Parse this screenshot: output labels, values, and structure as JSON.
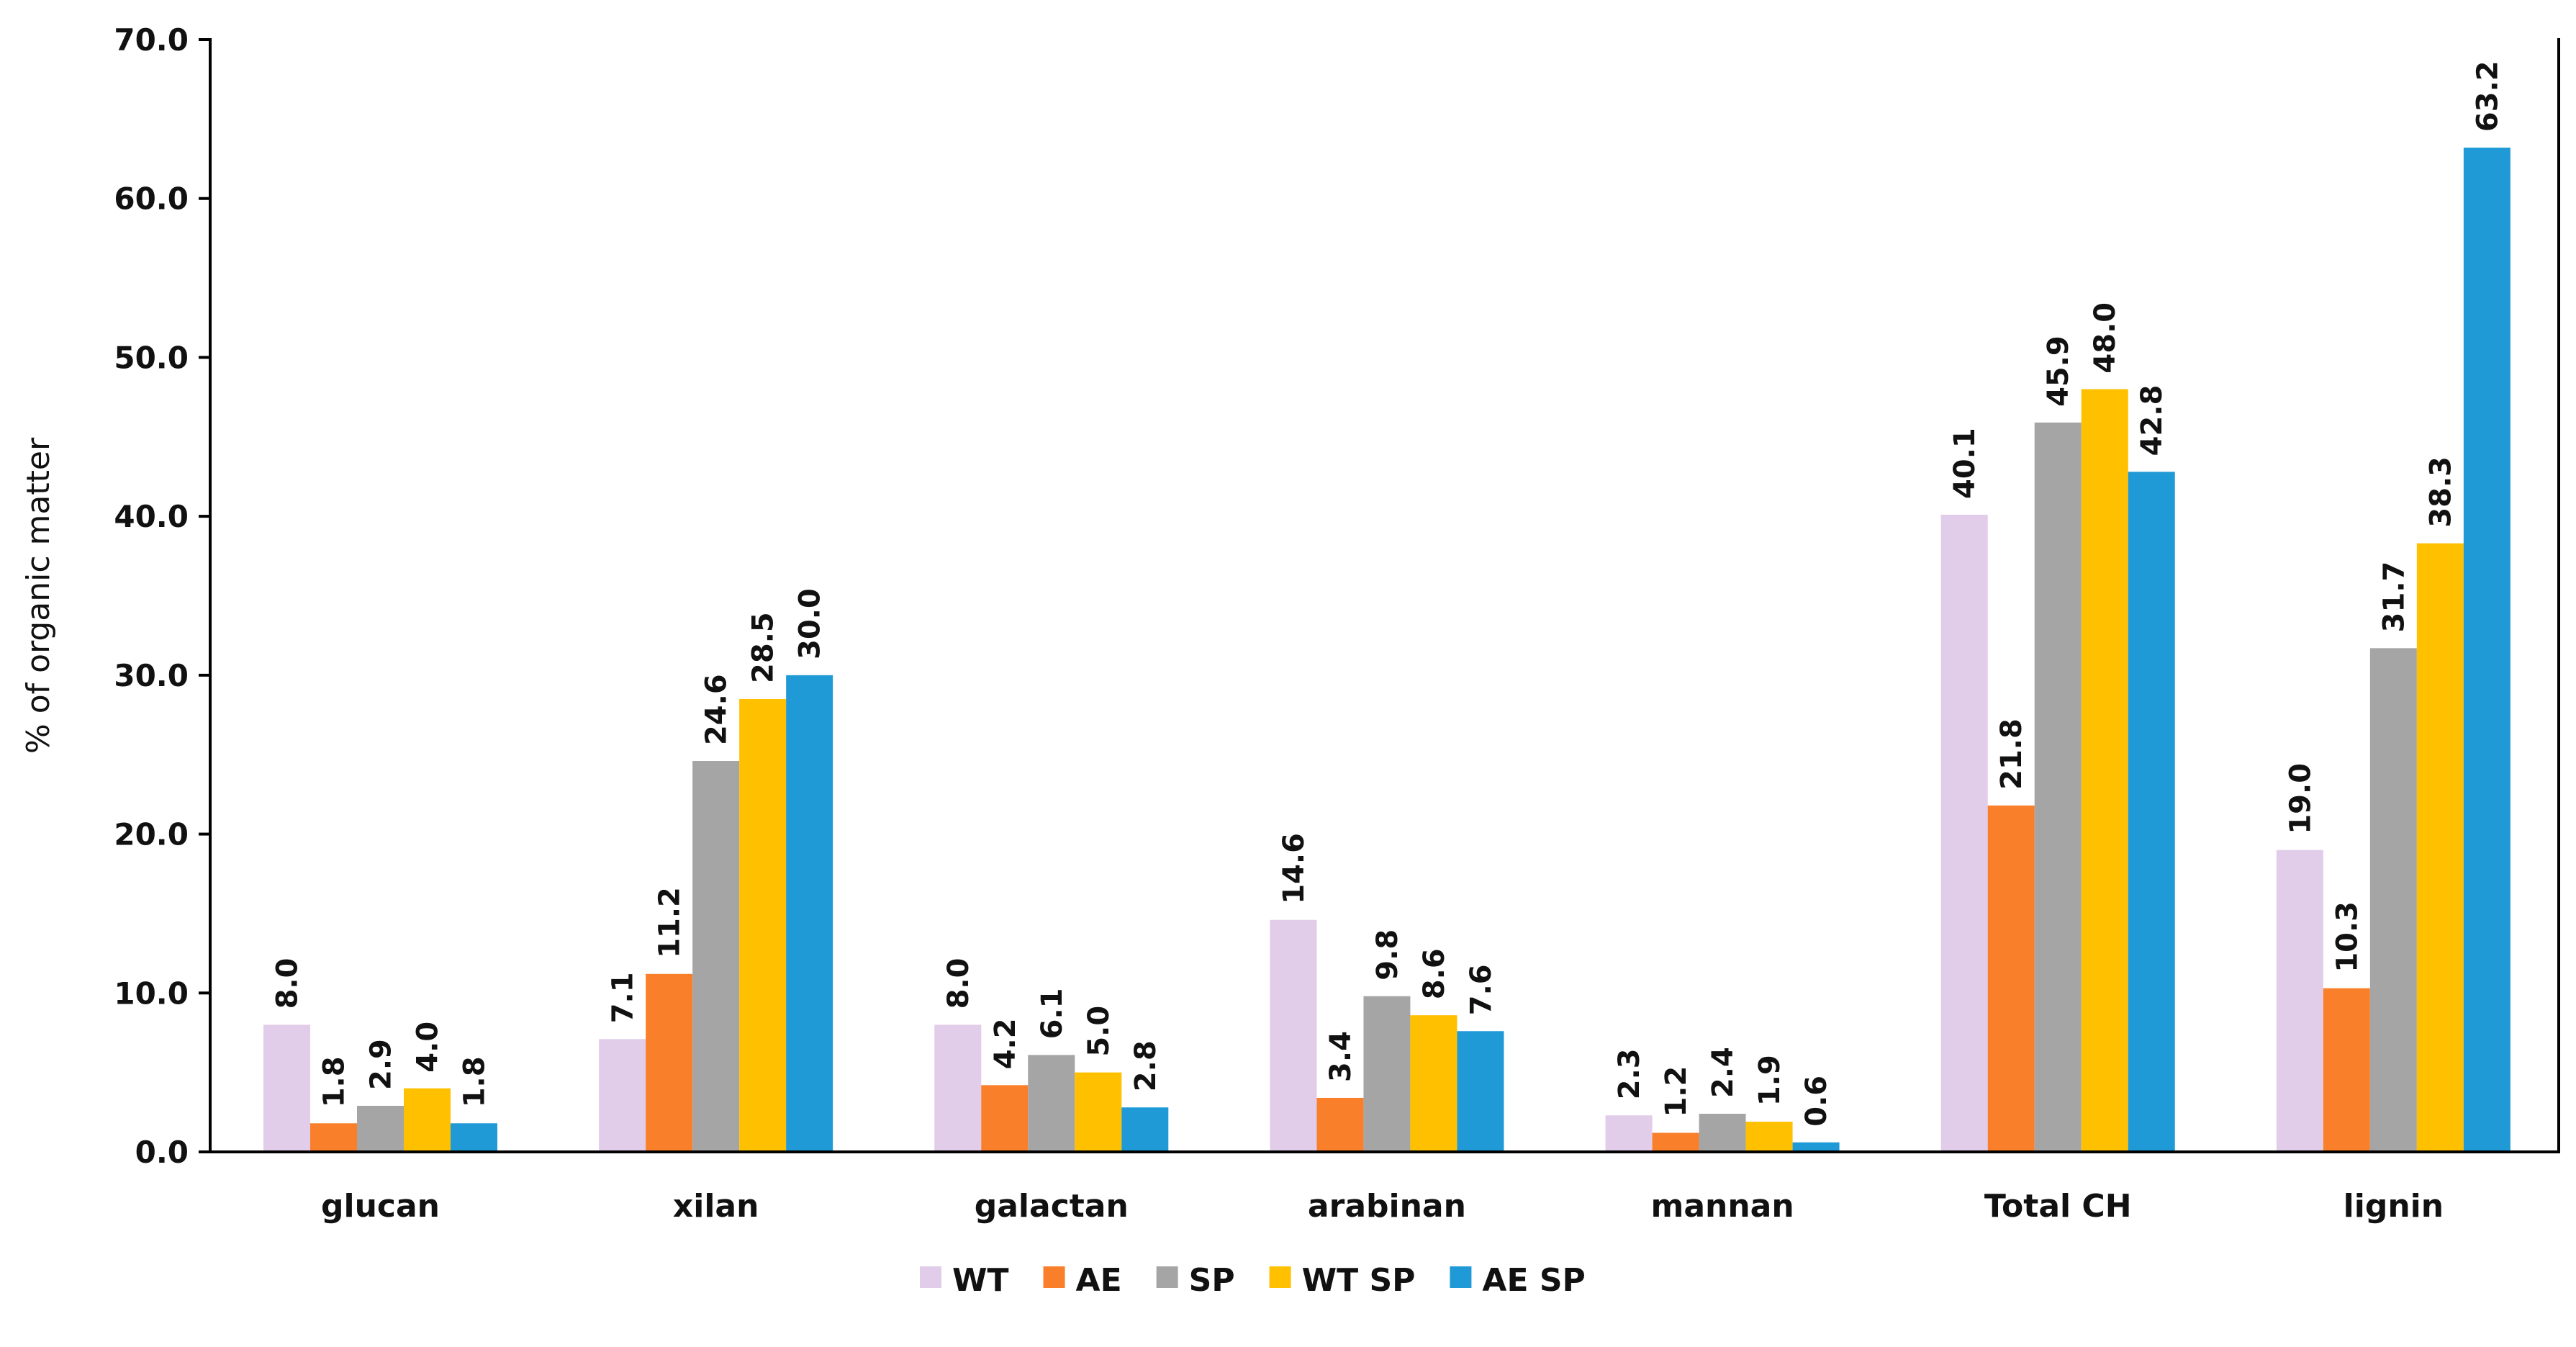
{
  "chart_data": {
    "type": "bar",
    "title": "",
    "xlabel": "",
    "ylabel": "% of  organic matter",
    "ylim": [
      0,
      70
    ],
    "ytick_labels": [
      "0.0",
      "10.0",
      "20.0",
      "30.0",
      "40.0",
      "50.0",
      "60.0",
      "70.0"
    ],
    "grid": false,
    "legend_position": "bottom",
    "categories": [
      "glucan",
      "xilan",
      "galactan",
      "arabinan",
      "mannan",
      "Total CH",
      "lignin"
    ],
    "series": [
      {
        "name": "WT",
        "color": "#E1CCE9",
        "values": [
          8.0,
          7.1,
          8.0,
          14.6,
          2.3,
          40.1,
          19.0
        ],
        "labels": [
          "8.0",
          "7.1",
          "8.0",
          "14.6",
          "2.3",
          "40.1",
          "19.0"
        ]
      },
      {
        "name": "AE",
        "color": "#F97F2A",
        "values": [
          1.8,
          11.2,
          4.2,
          3.4,
          1.2,
          21.8,
          10.3
        ],
        "labels": [
          "1.8",
          "11.2",
          "4.2",
          "3.4",
          "1.2",
          "21.8",
          "10.3"
        ]
      },
      {
        "name": "SP",
        "color": "#A5A5A5",
        "values": [
          2.9,
          24.6,
          6.1,
          9.8,
          2.4,
          45.9,
          31.7
        ],
        "labels": [
          "2.9",
          "24.6",
          "6.1",
          "9.8",
          "2.4",
          "45.9",
          "31.7"
        ]
      },
      {
        "name": "WT SP",
        "color": "#FFC000",
        "values": [
          4.0,
          28.5,
          5.0,
          8.6,
          1.9,
          48.0,
          38.3
        ],
        "labels": [
          "4.0",
          "28.5",
          "5.0",
          "8.6",
          "1.9",
          "48.0",
          "38.3"
        ]
      },
      {
        "name": "AE SP",
        "color": "#1F9AD6",
        "values": [
          1.8,
          30.0,
          2.8,
          7.6,
          0.6,
          42.8,
          63.2
        ],
        "labels": [
          "1.8",
          "30.0",
          "2.8",
          "7.6",
          "0.6",
          "42.8",
          "63.2"
        ]
      }
    ]
  }
}
